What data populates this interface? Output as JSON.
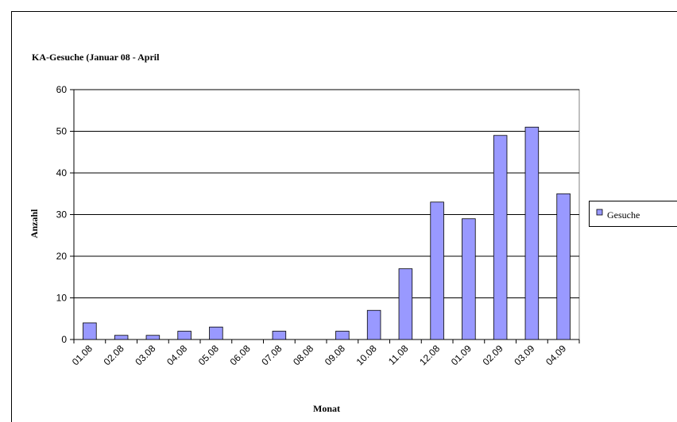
{
  "chart_data": {
    "type": "bar",
    "title": "KA-Gesuche (Januar 08 - April",
    "x_label": "Monat",
    "y_label": "Anzahl",
    "categories": [
      "01.08",
      "02.08",
      "03.08",
      "04.08",
      "05.08",
      "06.08",
      "07.08",
      "08.08",
      "09.08",
      "10.08",
      "11.08",
      "12.08",
      "01.09",
      "02.09",
      "03.09",
      "04.09"
    ],
    "series": [
      {
        "name": "Gesuche",
        "color": "#9999ff",
        "values": [
          4,
          1,
          1,
          2,
          3,
          0,
          2,
          0,
          2,
          7,
          17,
          33,
          29,
          49,
          51,
          35
        ]
      }
    ],
    "ylim": [
      0,
      60
    ],
    "yticks": [
      0,
      10,
      20,
      30,
      40,
      50,
      60
    ],
    "grid": true,
    "legend": "right"
  }
}
